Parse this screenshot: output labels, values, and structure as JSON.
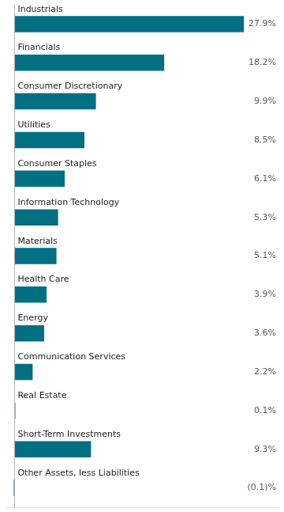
{
  "chart_data": {
    "type": "bar",
    "orientation": "horizontal",
    "categories": [
      "Industrials",
      "Financials",
      "Consumer Discretionary",
      "Utilities",
      "Consumer Staples",
      "Information Technology",
      "Materials",
      "Health Care",
      "Energy",
      "Communication Services",
      "Real Estate",
      "Short-Term Investments",
      "Other Assets, less Liabilities"
    ],
    "values": [
      27.9,
      18.2,
      9.9,
      8.5,
      6.1,
      5.3,
      5.1,
      3.9,
      3.6,
      2.2,
      0.1,
      9.3,
      -0.1
    ],
    "value_labels": [
      "27.9%",
      "18.2%",
      "9.9%",
      "8.5%",
      "6.1%",
      "5.3%",
      "5.1%",
      "3.9%",
      "3.6%",
      "2.2%",
      "0.1%",
      "9.3%",
      "(0.1)%"
    ],
    "data_labels": true,
    "color": "#007082",
    "xlim": [
      -1,
      32
    ],
    "tick_labels": false,
    "grid": false
  }
}
